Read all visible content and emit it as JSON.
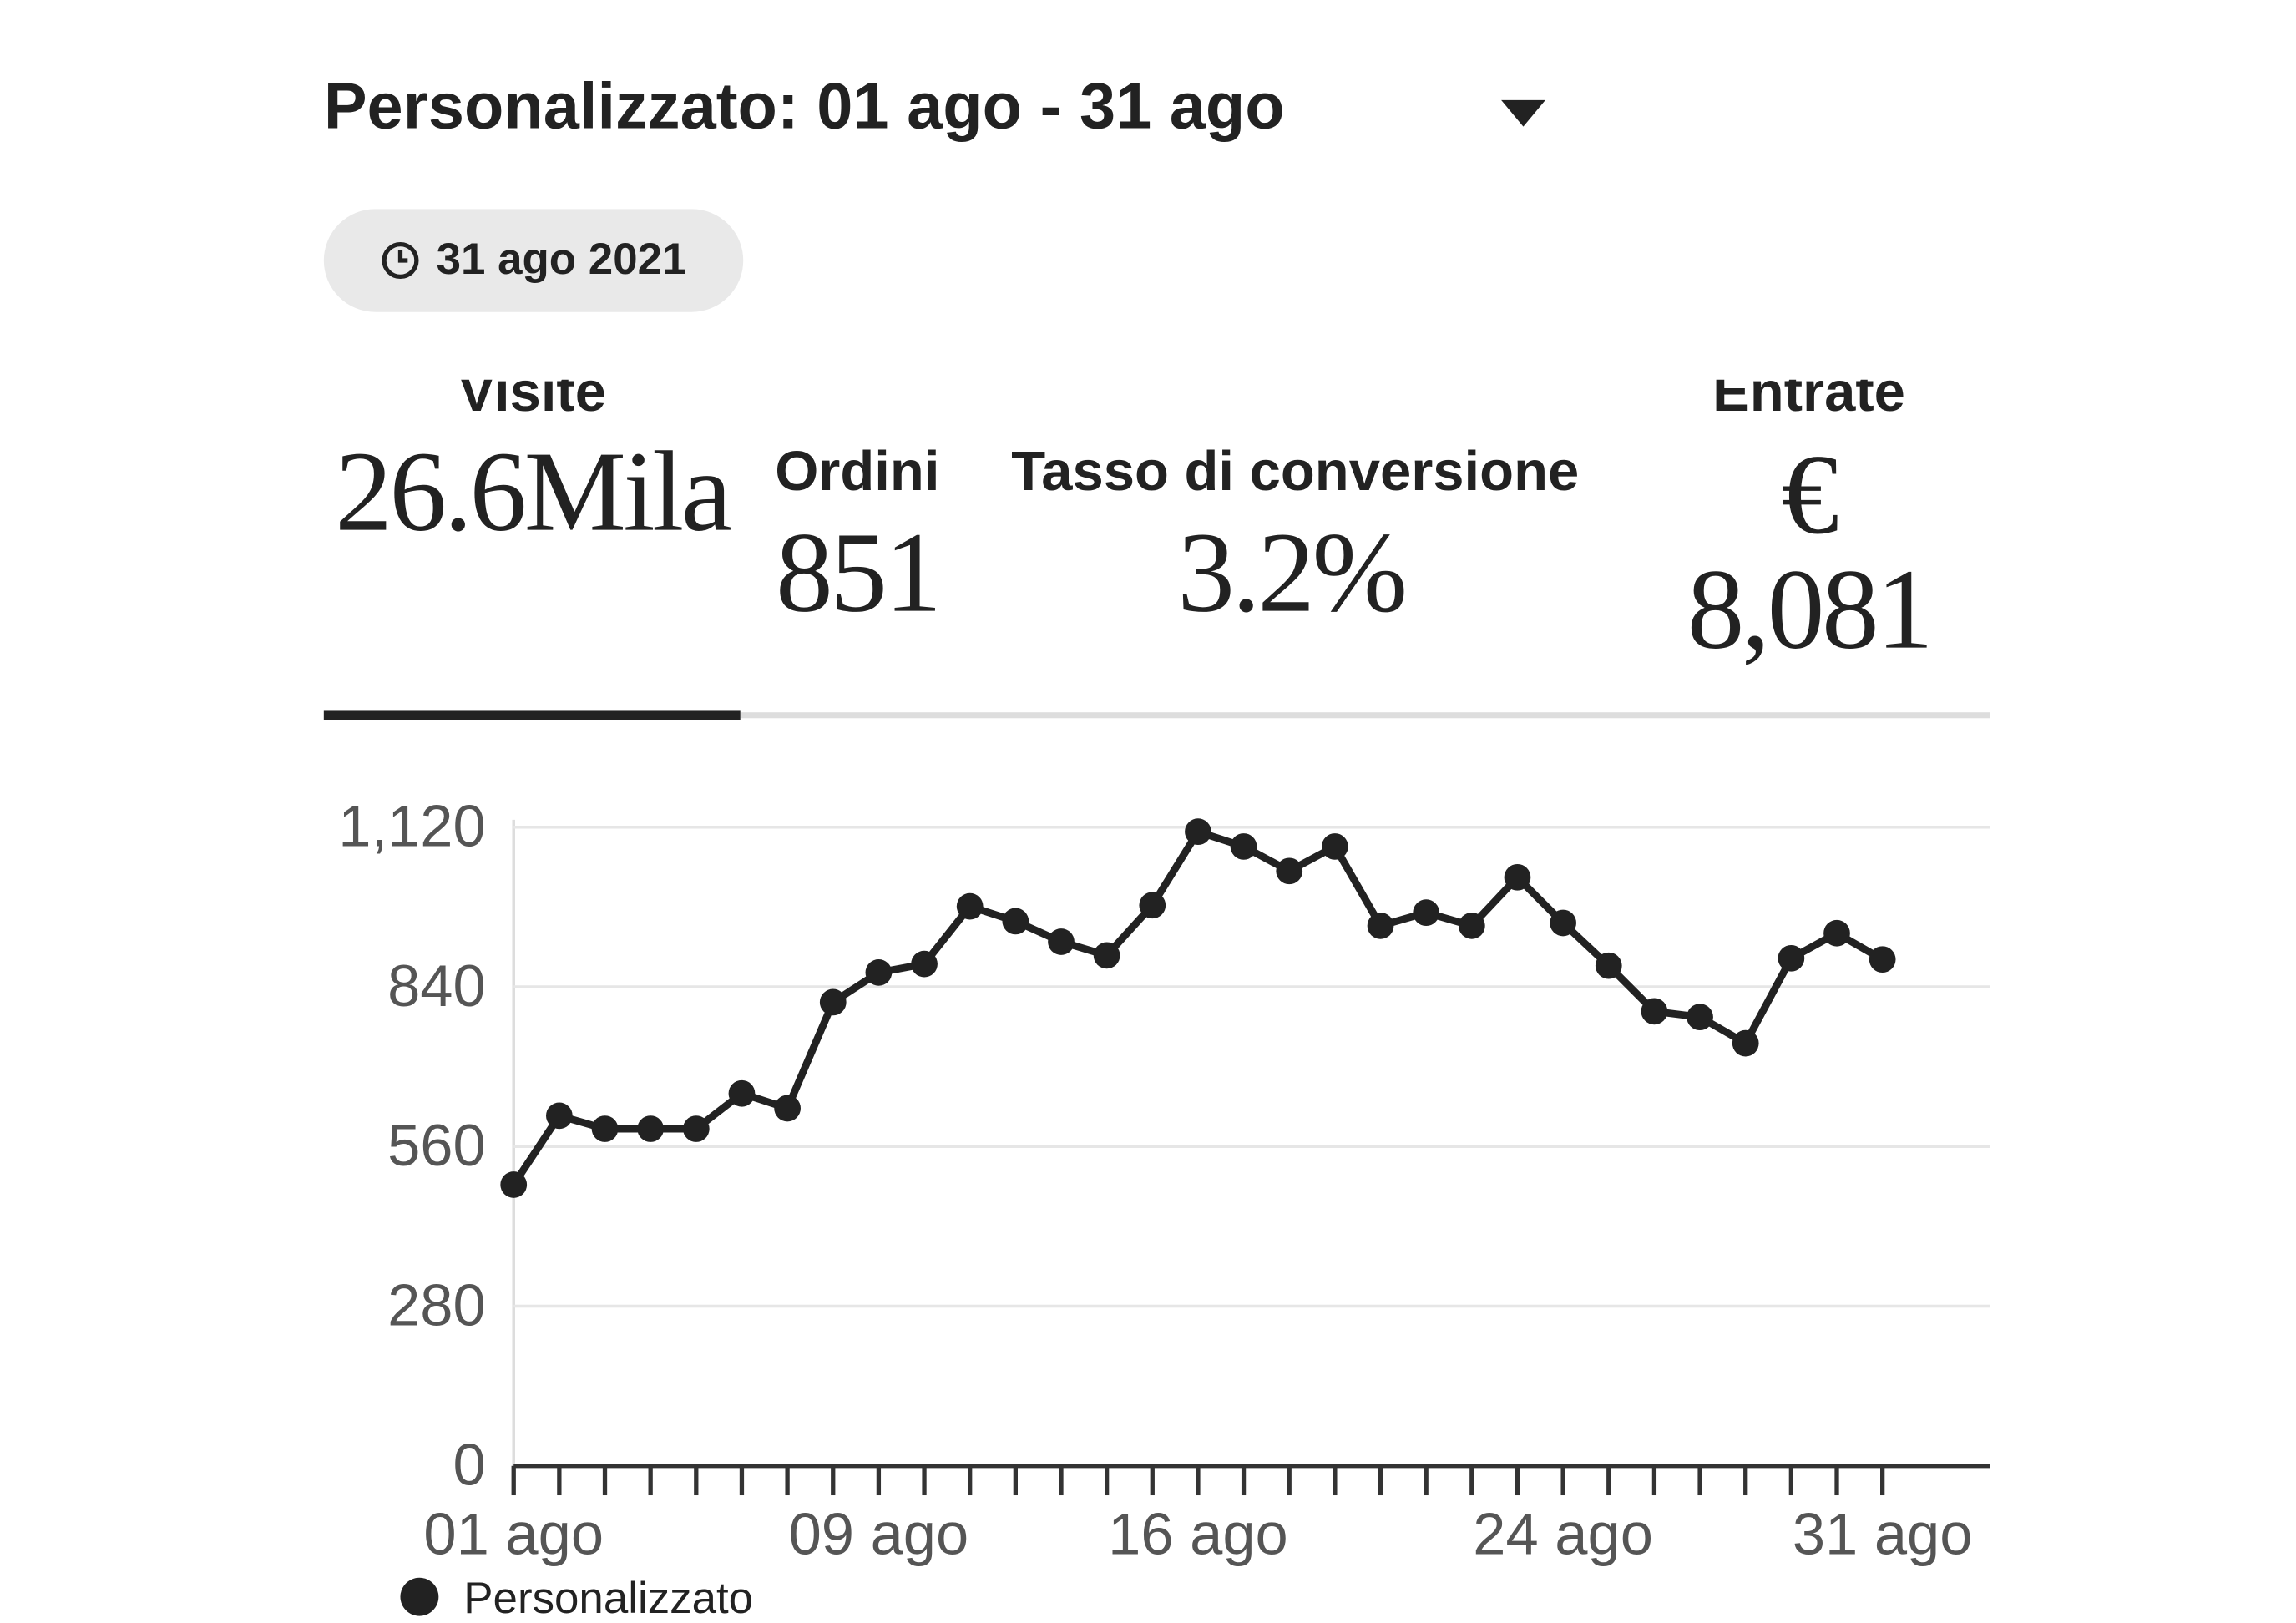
{
  "header": {
    "title": "Personalizzato: 01 ago - 31 ago",
    "date": "31 ago 2021"
  },
  "metrics": [
    {
      "label": "Visite",
      "value": "26.6Mila"
    },
    {
      "label": "Ordini",
      "value": "851"
    },
    {
      "label": "Tasso di conversione",
      "value": "3.2%"
    },
    {
      "label": "Entrate",
      "value": "€ 8,081"
    }
  ],
  "chart_data": {
    "type": "line",
    "categories": [
      "01 ago",
      null,
      null,
      null,
      null,
      null,
      null,
      null,
      "09 ago",
      null,
      null,
      null,
      null,
      null,
      null,
      "16 ago",
      null,
      null,
      null,
      null,
      null,
      null,
      null,
      "24 ago",
      null,
      null,
      null,
      null,
      null,
      null,
      "31 ago"
    ],
    "series": [
      {
        "name": "Personalizzato",
        "color": "#222222",
        "values": [
          493,
          614,
          591,
          591,
          591,
          653,
          627,
          813,
          865,
          880,
          981,
          955,
          919,
          895,
          983,
          1112,
          1086,
          1043,
          1086,
          947,
          970,
          947,
          1032,
          952,
          877,
          797,
          787,
          741,
          890,
          934,
          888
        ]
      }
    ],
    "ylim": [
      0,
      1120
    ],
    "yticks": [
      0,
      280,
      560,
      840,
      {
        "value": 1120,
        "label": "1,120"
      }
    ],
    "grid": true
  }
}
